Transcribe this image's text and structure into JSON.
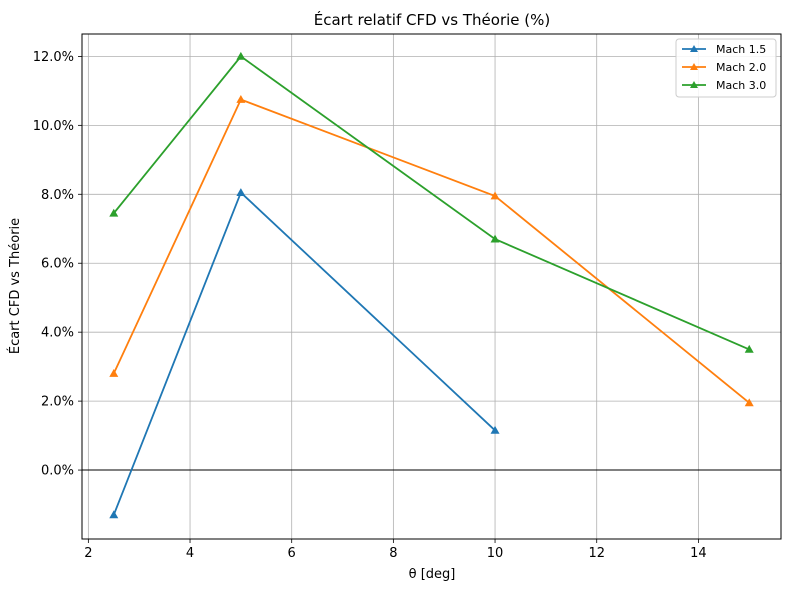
{
  "chart_data": {
    "type": "line",
    "title": "Écart relatif CFD vs Théorie (%)",
    "xlabel": "θ [deg]",
    "ylabel": "Écart CFD vs Théorie",
    "xlim": [
      1.875,
      15.625
    ],
    "ylim": [
      -2.0,
      12.65
    ],
    "xticks": [
      2,
      4,
      6,
      8,
      10,
      12,
      14
    ],
    "xtick_labels": [
      "2",
      "4",
      "6",
      "8",
      "10",
      "12",
      "14"
    ],
    "yticks": [
      0,
      2,
      4,
      6,
      8,
      10,
      12
    ],
    "ytick_labels": [
      "0.0%",
      "2.0%",
      "4.0%",
      "6.0%",
      "8.0%",
      "10.0%",
      "12.0%"
    ],
    "grid": true,
    "reference_line_y": 0,
    "legend_position": "top-right",
    "marker": "triangle-up",
    "series": [
      {
        "name": "Mach 1.5",
        "color": "#1f77b4",
        "x": [
          2.5,
          5,
          10
        ],
        "values": [
          -1.3,
          8.05,
          1.15
        ]
      },
      {
        "name": "Mach 2.0",
        "color": "#ff7f0e",
        "x": [
          2.5,
          5,
          10,
          15
        ],
        "values": [
          2.8,
          10.75,
          7.95,
          1.95
        ]
      },
      {
        "name": "Mach 3.0",
        "color": "#2ca02c",
        "x": [
          2.5,
          5,
          10,
          15
        ],
        "values": [
          7.45,
          12.0,
          6.7,
          3.5
        ]
      }
    ]
  }
}
